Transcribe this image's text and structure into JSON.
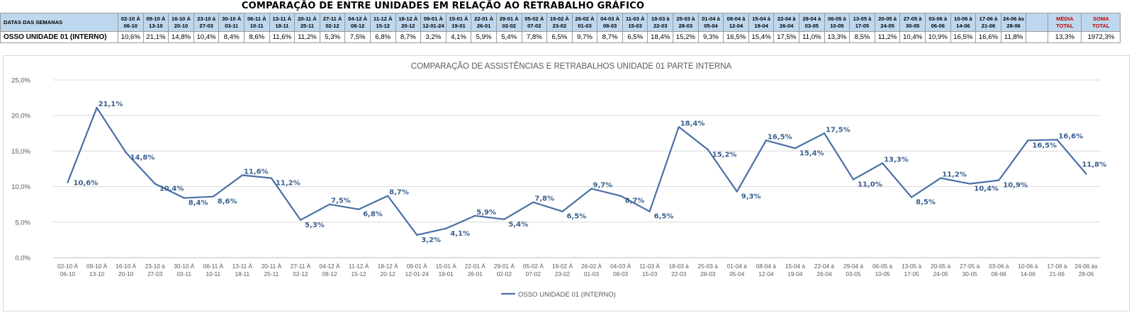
{
  "header_title": "COMPARAÇÃO DE ENTRE UNIDADES EM RELAÇÃO AO RETRABALHO GRÁFICO",
  "table": {
    "corner_label": "DATAS DAS SEMANAS",
    "row_label": "OSSO UNIDADE 01 (INTERNO)",
    "weeks": [
      [
        "02-10 À",
        "06-10"
      ],
      [
        "09-10 À",
        "13-10"
      ],
      [
        "16-10 À",
        "20-10"
      ],
      [
        "23-10 à",
        "27-03"
      ],
      [
        "30-10 À",
        "03-11"
      ],
      [
        "06-11 À",
        "10-11"
      ],
      [
        "13-11 À",
        "18-11"
      ],
      [
        "20-11 À",
        "25-11"
      ],
      [
        "27-11 À",
        "02-12"
      ],
      [
        "04-12 À",
        "08-12"
      ],
      [
        "11-12 À",
        "15-12"
      ],
      [
        "18-12 À",
        "20-12"
      ],
      [
        "09-01 À",
        "12-01-24"
      ],
      [
        "15-01 À",
        "19-01"
      ],
      [
        "22-01 À",
        "26-01"
      ],
      [
        "29-01 À",
        "02-02"
      ],
      [
        "05-02 À",
        "07-02"
      ],
      [
        "19-02 À",
        "23-02"
      ],
      [
        "26-02 À",
        "01-03"
      ],
      [
        "04-03 À",
        "08-03"
      ],
      [
        "11-03 À",
        "15-03"
      ],
      [
        "18-03 à",
        "22-03"
      ],
      [
        "25-03 à",
        "28-03"
      ],
      [
        "01-04 à",
        "05-04"
      ],
      [
        "08-04 à",
        "12-04"
      ],
      [
        "15-04 à",
        "19-04"
      ],
      [
        "22-04 à",
        "26-04"
      ],
      [
        "29-04 à",
        "03-05"
      ],
      [
        "06-05 à",
        "10-05"
      ],
      [
        "13-05 à",
        "17-05"
      ],
      [
        "20-05 à",
        "24-05"
      ],
      [
        "27-05 à",
        "30-05"
      ],
      [
        "03-06 à",
        "06-06"
      ],
      [
        "10-06 à",
        "14-06"
      ],
      [
        "17-06 à",
        "21-06"
      ],
      [
        "24-06 às",
        "28-06"
      ]
    ],
    "values": [
      "10,6%",
      "21,1%",
      "14,8%",
      "10,4%",
      "8,4%",
      "8,6%",
      "11,6%",
      "11,2%",
      "5,3%",
      "7,5%",
      "6,8%",
      "8,7%",
      "3,2%",
      "4,1%",
      "5,9%",
      "5,4%",
      "7,8%",
      "6,5%",
      "9,7%",
      "8,7%",
      "6,5%",
      "18,4%",
      "15,2%",
      "9,3%",
      "16,5%",
      "15,4%",
      "17,5%",
      "11,0%",
      "13,3%",
      "8,5%",
      "11,2%",
      "10,4%",
      "10,9%",
      "16,5%",
      "16,6%",
      "11,8%"
    ],
    "media_label": [
      "MÉDIA",
      "TOTAL"
    ],
    "media_value": "13,3%",
    "soma_label": [
      "SOMA",
      "TOTAL"
    ],
    "soma_value": "1972,3%"
  },
  "colors": {
    "line": "#4a6fa5",
    "label": "#3a5f8f",
    "header_fill": "#bdd7ee",
    "media_fill": "#fce4d6",
    "soma_fill": "#ffff00",
    "total_header_text": "#c00000"
  },
  "chart_data": {
    "type": "line",
    "title": "COMPARAÇÃO DE ASSISTÊNCIAS E RETRABALHOS UNIDADE 01 PARTE INTERNA",
    "x": [
      [
        "02-10 À",
        "06-10"
      ],
      [
        "09-10 À",
        "13-10"
      ],
      [
        "16-10 À",
        "20-10"
      ],
      [
        "23-10 à",
        "27-03"
      ],
      [
        "30-10 À",
        "03-11"
      ],
      [
        "06-11 À",
        "10-11"
      ],
      [
        "13-11 À",
        "18-11"
      ],
      [
        "20-11 À",
        "25-11"
      ],
      [
        "27-11 À",
        "02-12"
      ],
      [
        "04-12 À",
        "08-12"
      ],
      [
        "11-12 À",
        "15-12"
      ],
      [
        "18-12 À",
        "20-12"
      ],
      [
        "09-01 À",
        "12-01-24"
      ],
      [
        "15-01 À",
        "19-01"
      ],
      [
        "22-01 À",
        "26-01"
      ],
      [
        "29-01 À",
        "02-02"
      ],
      [
        "05-02 À",
        "07-02"
      ],
      [
        "19-02 À",
        "23-02"
      ],
      [
        "26-02 À",
        "01-03"
      ],
      [
        "04-03 À",
        "08-03"
      ],
      [
        "11-03 À",
        "15-03"
      ],
      [
        "18-03 à",
        "22-03"
      ],
      [
        "25-03 à",
        "28-03"
      ],
      [
        "01-04 à",
        "05-04"
      ],
      [
        "08-04 à",
        "12-04"
      ],
      [
        "15-04 à",
        "19-04"
      ],
      [
        "22-04 à",
        "26-04"
      ],
      [
        "29-04 à",
        "03-05"
      ],
      [
        "06-05 à",
        "10-05"
      ],
      [
        "13-05 à",
        "17-05"
      ],
      [
        "20-05 à",
        "24-05"
      ],
      [
        "27-05 à",
        "30-05"
      ],
      [
        "03-06 à",
        "06-06"
      ],
      [
        "10-06 à",
        "14-06"
      ],
      [
        "17-06 à",
        "21-06"
      ],
      [
        "24-06 às",
        "28-06"
      ]
    ],
    "series": [
      {
        "name": "OSSO UNIDADE 01 (INTERNO)",
        "values": [
          10.6,
          21.1,
          14.8,
          10.4,
          8.4,
          8.6,
          11.6,
          11.2,
          5.3,
          7.5,
          6.8,
          8.7,
          3.2,
          4.1,
          5.9,
          5.4,
          7.8,
          6.5,
          9.7,
          8.7,
          6.5,
          18.4,
          15.2,
          9.3,
          16.5,
          15.4,
          17.5,
          11.0,
          13.3,
          8.5,
          11.2,
          10.4,
          10.9,
          16.5,
          16.6,
          11.8
        ],
        "labels": [
          "10,6%",
          "21,1%",
          "14,8%",
          "10,4%",
          "8,4%",
          "8,6%",
          "11,6%",
          "11,2%",
          "5,3%",
          "7,5%",
          "6,8%",
          "8,7%",
          "3,2%",
          "4,1%",
          "5,9%",
          "5,4%",
          "7,8%",
          "6,5%",
          "9,7%",
          "8,7%",
          "6,5%",
          "18,4%",
          "15,2%",
          "9,3%",
          "16,5%",
          "15,4%",
          "17,5%",
          "11,0%",
          "13,3%",
          "8,5%",
          "11,2%",
          "10,4%",
          "10,9%",
          "16,5%",
          "16,6%",
          "11,8%"
        ]
      }
    ],
    "y_ticks": [
      "0,0%",
      "5,0%",
      "10,0%",
      "15,0%",
      "20,0%",
      "25,0%"
    ],
    "ylim": [
      0,
      25
    ],
    "grid": true,
    "legend": "bottom-center"
  }
}
